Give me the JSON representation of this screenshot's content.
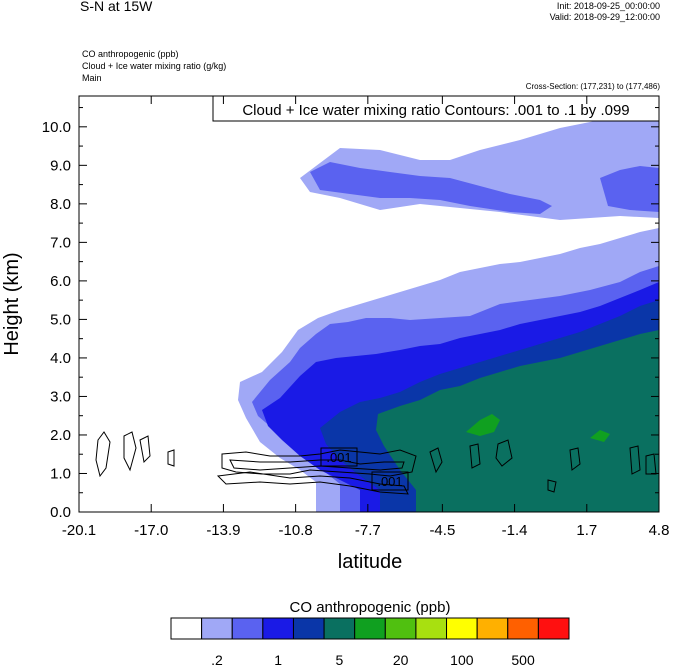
{
  "header": {
    "title": "S-N at 15W",
    "init": "Init: 2018-09-25_00:00:00",
    "valid": "Valid: 2018-09-29_12:00:00",
    "field1": "CO anthropogenic   (ppb)",
    "field2": "Cloud + Ice water mixing ratio   (g/kg)",
    "field3": "Main",
    "cross_section": "Cross-Section: (177,231) to (177,486)"
  },
  "chart_data": {
    "type": "heatmap",
    "title": "Cloud + Ice water mixing ratio Contours: .001 to .1 by .099",
    "xlabel": "latitude",
    "ylabel": "Height (km)",
    "xlim": [
      -20.1,
      4.8
    ],
    "ylim": [
      0.0,
      10.8
    ],
    "x_ticks": [
      "-20.1",
      "-17.0",
      "-13.9",
      "-10.8",
      "-7.7",
      "-4.5",
      "-1.4",
      "1.7",
      "4.8"
    ],
    "y_ticks": [
      "0.0",
      "1.0",
      "2.0",
      "3.0",
      "4.0",
      "5.0",
      "6.0",
      "7.0",
      "8.0",
      "9.0",
      "10.0"
    ],
    "contour_labels": [
      ".001",
      ".001"
    ],
    "colorbar": {
      "label": "CO anthropogenic  (ppb)",
      "tick_labels": [
        ".2",
        "1",
        "5",
        "20",
        "100",
        "500"
      ],
      "colors": [
        "#ffffff",
        "#a0a8f6",
        "#5a62f0",
        "#1a1ae6",
        "#0a36a8",
        "#0a7060",
        "#10a020",
        "#50c010",
        "#a8e010",
        "#ffff00",
        "#ffb000",
        "#ff6000",
        "#ff1010"
      ]
    }
  }
}
